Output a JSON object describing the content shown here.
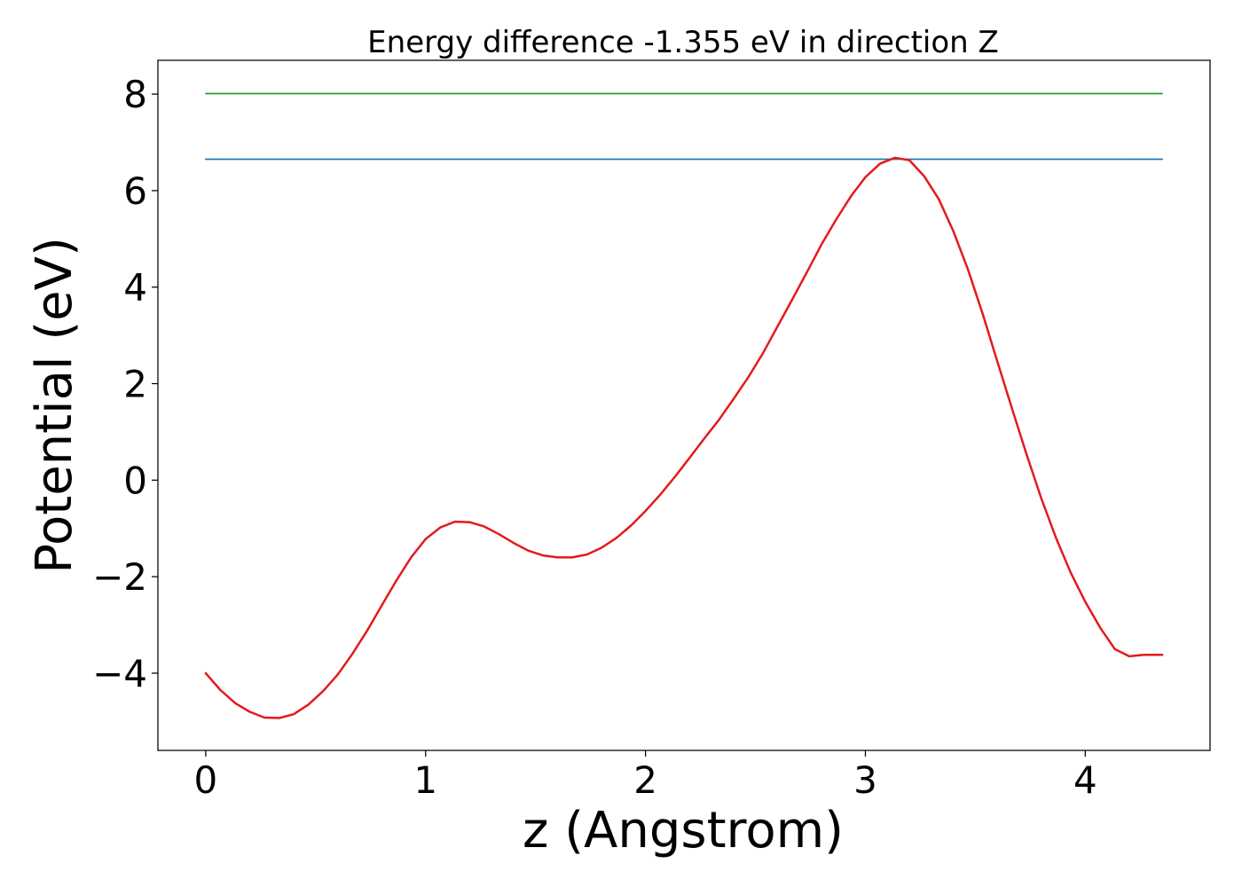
{
  "chart_data": {
    "type": "line",
    "title": "Energy difference -1.355 eV in direction Z",
    "xlabel": "z (Angstrom)",
    "ylabel": "Potential (eV)",
    "xlim": [
      -0.2175,
      4.5675
    ],
    "ylim": [
      -5.6,
      8.7
    ],
    "x_ticks": [
      0,
      1,
      2,
      3,
      4
    ],
    "x_tick_labels": [
      "0",
      "1",
      "2",
      "3",
      "4"
    ],
    "y_ticks": [
      -4,
      -2,
      0,
      2,
      4,
      6,
      8
    ],
    "y_tick_labels": [
      "−4",
      "−2",
      "0",
      "2",
      "4",
      "6",
      "8"
    ],
    "grid": false,
    "series": [
      {
        "kind": "hline",
        "color": "#2ca02c",
        "x": [
          0,
          4.35
        ],
        "y": [
          8.01,
          8.01
        ]
      },
      {
        "kind": "hline",
        "color": "#1f77b4",
        "x": [
          0,
          4.35
        ],
        "y": [
          6.65,
          6.65
        ]
      },
      {
        "kind": "curve",
        "color": "#e41a1c",
        "x": [
          0,
          0.067,
          0.134,
          0.2,
          0.267,
          0.334,
          0.4,
          0.467,
          0.534,
          0.6,
          0.667,
          0.734,
          0.8,
          0.867,
          0.934,
          1.0,
          1.067,
          1.134,
          1.2,
          1.267,
          1.334,
          1.4,
          1.467,
          1.534,
          1.6,
          1.667,
          1.734,
          1.8,
          1.867,
          1.934,
          2.0,
          2.067,
          2.134,
          2.2,
          2.267,
          2.334,
          2.4,
          2.467,
          2.534,
          2.6,
          2.667,
          2.734,
          2.8,
          2.867,
          2.934,
          3.0,
          3.067,
          3.134,
          3.2,
          3.267,
          3.334,
          3.4,
          3.467,
          3.534,
          3.6,
          3.667,
          3.734,
          3.8,
          3.867,
          3.934,
          4.0,
          4.067,
          4.134,
          4.2,
          4.267,
          4.35
        ],
        "y": [
          -4.0,
          -4.35,
          -4.62,
          -4.8,
          -4.92,
          -4.93,
          -4.85,
          -4.65,
          -4.37,
          -4.03,
          -3.6,
          -3.12,
          -2.6,
          -2.08,
          -1.6,
          -1.22,
          -0.98,
          -0.86,
          -0.87,
          -0.96,
          -1.12,
          -1.3,
          -1.46,
          -1.56,
          -1.6,
          -1.6,
          -1.54,
          -1.4,
          -1.2,
          -0.94,
          -0.64,
          -0.3,
          0.07,
          0.46,
          0.86,
          1.25,
          1.68,
          2.13,
          2.63,
          3.18,
          3.74,
          4.31,
          4.88,
          5.4,
          5.88,
          6.28,
          6.56,
          6.68,
          6.63,
          6.3,
          5.82,
          5.16,
          4.36,
          3.44,
          2.46,
          1.48,
          0.52,
          -0.38,
          -1.2,
          -1.92,
          -2.52,
          -3.05,
          -3.5,
          -3.65,
          -3.62,
          -3.62
        ]
      }
    ]
  }
}
